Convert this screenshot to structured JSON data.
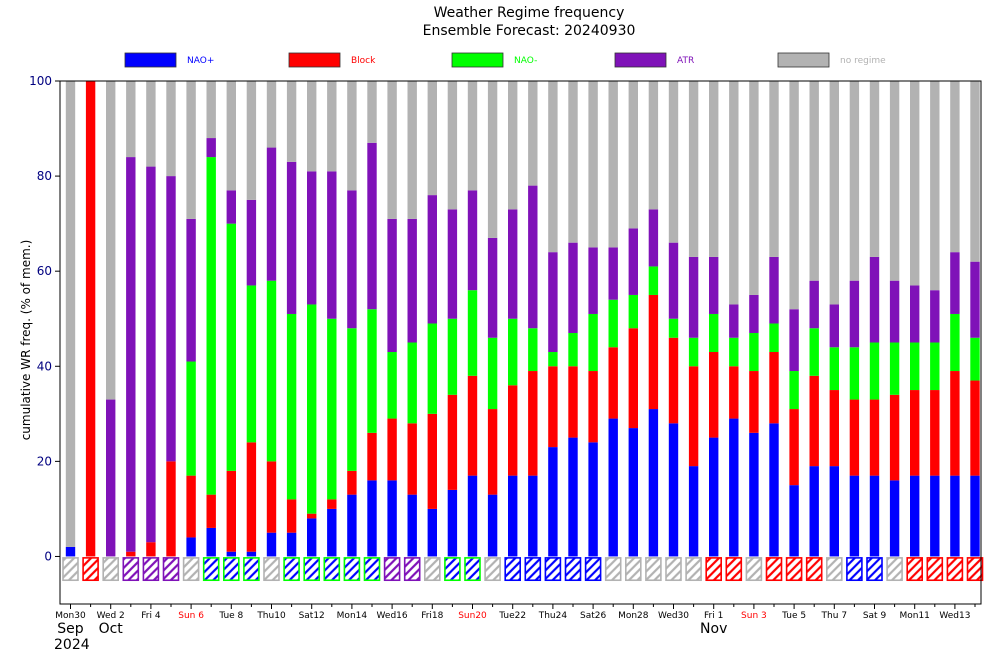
{
  "chart_data": {
    "type": "bar",
    "stacked": true,
    "title": "Weather Regime frequency",
    "subtitle": "Ensemble Forecast: 20240930",
    "ylabel": "cumulative WR freq. (% of mem.)",
    "xlabel": "",
    "ylim": [
      -10,
      100
    ],
    "yticks": [
      0,
      20,
      40,
      60,
      80,
      100
    ],
    "grid": false,
    "legend": [
      {
        "name": "NAO+",
        "color": "#0000ff",
        "text_color": "#0000ff"
      },
      {
        "name": "Block",
        "color": "#ff0000",
        "text_color": "#ff0000"
      },
      {
        "name": "NAO-",
        "color": "#00ff00",
        "text_color": "#00ff00"
      },
      {
        "name": "ATR",
        "color": "#7f12b8",
        "text_color": "#7f12b8"
      },
      {
        "name": "no regime",
        "color": "#b2b2b2",
        "text_color": "#b2b2b2"
      }
    ],
    "series": [
      {
        "name": "NAO+",
        "color": "#0000ff",
        "values": [
          2,
          0,
          0,
          0,
          0,
          0,
          4,
          6,
          1,
          1,
          5,
          5,
          8,
          10,
          13,
          16,
          16,
          13,
          10,
          14,
          17,
          13,
          17,
          17,
          23,
          25,
          24,
          29,
          27,
          31,
          28,
          19,
          25,
          29,
          26,
          28,
          15,
          19,
          19,
          17,
          17,
          16,
          17,
          17,
          17,
          17
        ]
      },
      {
        "name": "Block",
        "color": "#ff0000",
        "values": [
          0,
          100,
          0,
          1,
          3,
          20,
          13,
          7,
          17,
          23,
          15,
          7,
          1,
          2,
          5,
          10,
          13,
          15,
          20,
          20,
          21,
          18,
          19,
          22,
          17,
          15,
          15,
          15,
          21,
          24,
          18,
          21,
          18,
          11,
          13,
          15,
          16,
          19,
          16,
          16,
          16,
          18,
          18,
          18,
          22,
          20
        ]
      },
      {
        "name": "NAO-",
        "color": "#00ff00",
        "values": [
          0,
          0,
          0,
          0,
          0,
          0,
          24,
          71,
          52,
          33,
          38,
          39,
          44,
          38,
          30,
          26,
          14,
          17,
          19,
          16,
          18,
          15,
          14,
          9,
          3,
          7,
          12,
          10,
          7,
          6,
          4,
          6,
          8,
          6,
          8,
          6,
          8,
          10,
          9,
          11,
          12,
          11,
          10,
          10,
          12,
          9
        ]
      },
      {
        "name": "ATR",
        "color": "#7f12b8",
        "values": [
          0,
          0,
          33,
          83,
          79,
          60,
          30,
          4,
          7,
          18,
          28,
          32,
          28,
          31,
          29,
          35,
          28,
          26,
          27,
          23,
          21,
          21,
          23,
          30,
          21,
          19,
          14,
          11,
          14,
          12,
          16,
          17,
          12,
          7,
          8,
          14,
          13,
          10,
          9,
          14,
          18,
          13,
          12,
          11,
          13,
          16
        ]
      },
      {
        "name": "no regime",
        "color": "#b2b2b2",
        "values": [
          98,
          0,
          67,
          16,
          18,
          20,
          29,
          12,
          23,
          25,
          14,
          17,
          19,
          19,
          23,
          13,
          29,
          29,
          24,
          27,
          23,
          33,
          27,
          22,
          36,
          34,
          35,
          35,
          31,
          27,
          34,
          37,
          37,
          47,
          45,
          37,
          48,
          42,
          47,
          42,
          37,
          42,
          43,
          44,
          36,
          38
        ]
      }
    ],
    "dominant_regime": [
      "no regime",
      "Block",
      "no regime",
      "ATR",
      "ATR",
      "ATR",
      "no regime",
      "NAO-",
      "NAO-",
      "NAO-",
      "no regime",
      "NAO-",
      "NAO-",
      "NAO-",
      "NAO-",
      "NAO-",
      "ATR",
      "ATR",
      "no regime",
      "NAO-",
      "NAO-",
      "no regime",
      "NAO+",
      "NAO+",
      "NAO+",
      "NAO+",
      "NAO+",
      "no regime",
      "no regime",
      "no regime",
      "no regime",
      "no regime",
      "Block",
      "Block",
      "no regime",
      "Block",
      "Block",
      "Block",
      "no regime",
      "NAO+",
      "NAO+",
      "no regime",
      "Block",
      "Block",
      "Block",
      "Block"
    ],
    "x_tick_labels": [
      {
        "index": 0,
        "label": "Mon30",
        "color": "#000000"
      },
      {
        "index": 2,
        "label": "Wed 2",
        "color": "#000000"
      },
      {
        "index": 4,
        "label": "Fri 4",
        "color": "#000000"
      },
      {
        "index": 6,
        "label": "Sun 6",
        "color": "#ff0000"
      },
      {
        "index": 8,
        "label": "Tue 8",
        "color": "#000000"
      },
      {
        "index": 10,
        "label": "Thu10",
        "color": "#000000"
      },
      {
        "index": 12,
        "label": "Sat12",
        "color": "#000000"
      },
      {
        "index": 14,
        "label": "Mon14",
        "color": "#000000"
      },
      {
        "index": 16,
        "label": "Wed16",
        "color": "#000000"
      },
      {
        "index": 18,
        "label": "Fri18",
        "color": "#000000"
      },
      {
        "index": 20,
        "label": "Sun20",
        "color": "#ff0000"
      },
      {
        "index": 22,
        "label": "Tue22",
        "color": "#000000"
      },
      {
        "index": 24,
        "label": "Thu24",
        "color": "#000000"
      },
      {
        "index": 26,
        "label": "Sat26",
        "color": "#000000"
      },
      {
        "index": 28,
        "label": "Mon28",
        "color": "#000000"
      },
      {
        "index": 30,
        "label": "Wed30",
        "color": "#000000"
      },
      {
        "index": 32,
        "label": "Fri 1",
        "color": "#000000"
      },
      {
        "index": 34,
        "label": "Sun 3",
        "color": "#ff0000"
      },
      {
        "index": 36,
        "label": "Tue 5",
        "color": "#000000"
      },
      {
        "index": 38,
        "label": "Thu 7",
        "color": "#000000"
      },
      {
        "index": 40,
        "label": "Sat 9",
        "color": "#000000"
      },
      {
        "index": 42,
        "label": "Mon11",
        "color": "#000000"
      },
      {
        "index": 44,
        "label": "Wed13",
        "color": "#000000"
      }
    ],
    "month_labels": [
      {
        "index": 0,
        "label": "Sep"
      },
      {
        "index": 2,
        "label": "Oct"
      },
      {
        "index": 32,
        "label": "Nov"
      }
    ],
    "year_label": "2024"
  }
}
